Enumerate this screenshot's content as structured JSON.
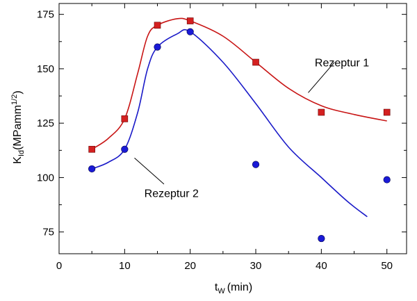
{
  "chart_data": {
    "type": "scatter",
    "xlabel": "t",
    "xlabel_sub": "W",
    "xlabel_unit": "(min)",
    "ylabel": "K",
    "ylabel_sub": "Id",
    "ylabel_unit": "(MPamm",
    "ylabel_sup": "1/2",
    "ylabel_close": ")",
    "xlim": [
      0,
      53
    ],
    "ylim": [
      65,
      180
    ],
    "xticks": [
      0,
      10,
      20,
      30,
      40,
      50
    ],
    "yticks": [
      75,
      100,
      125,
      150,
      175
    ],
    "grid": false,
    "series": [
      {
        "name": "Rezeptur 1",
        "marker": "square",
        "color": "#d42020",
        "line_color": "#c81414",
        "points": [
          {
            "x": 5,
            "y": 113
          },
          {
            "x": 10,
            "y": 127
          },
          {
            "x": 15,
            "y": 170
          },
          {
            "x": 20,
            "y": 172
          },
          {
            "x": 30,
            "y": 153
          },
          {
            "x": 40,
            "y": 130
          },
          {
            "x": 50,
            "y": 130
          }
        ],
        "curve": [
          {
            "x": 5,
            "y": 113
          },
          {
            "x": 7.5,
            "y": 118
          },
          {
            "x": 10,
            "y": 127
          },
          {
            "x": 12,
            "y": 148
          },
          {
            "x": 13.5,
            "y": 165
          },
          {
            "x": 15,
            "y": 170
          },
          {
            "x": 18,
            "y": 173
          },
          {
            "x": 20,
            "y": 172
          },
          {
            "x": 25,
            "y": 165
          },
          {
            "x": 30,
            "y": 153
          },
          {
            "x": 35,
            "y": 141
          },
          {
            "x": 40,
            "y": 133
          },
          {
            "x": 45,
            "y": 129
          },
          {
            "x": 50,
            "y": 126
          }
        ],
        "label_pointer": {
          "x1": 42,
          "y1": 153,
          "x2": 38,
          "y2": 139
        }
      },
      {
        "name": "Rezeptur 2",
        "marker": "circle",
        "color": "#1a1ad6",
        "line_color": "#1a1ac8",
        "points": [
          {
            "x": 5,
            "y": 104
          },
          {
            "x": 10,
            "y": 113
          },
          {
            "x": 15,
            "y": 160
          },
          {
            "x": 20,
            "y": 167
          },
          {
            "x": 30,
            "y": 106
          },
          {
            "x": 40,
            "y": 72
          },
          {
            "x": 50,
            "y": 99
          }
        ],
        "curve": [
          {
            "x": 5,
            "y": 104
          },
          {
            "x": 7.5,
            "y": 107
          },
          {
            "x": 10,
            "y": 113
          },
          {
            "x": 12,
            "y": 130
          },
          {
            "x": 13.5,
            "y": 150
          },
          {
            "x": 15,
            "y": 160
          },
          {
            "x": 18,
            "y": 166
          },
          {
            "x": 20,
            "y": 167
          },
          {
            "x": 25,
            "y": 153
          },
          {
            "x": 30,
            "y": 134
          },
          {
            "x": 35,
            "y": 114
          },
          {
            "x": 40,
            "y": 100
          },
          {
            "x": 44,
            "y": 89
          },
          {
            "x": 47,
            "y": 82
          }
        ],
        "label_pointer": {
          "x1": 16,
          "y1": 97,
          "x2": 11.5,
          "y2": 109
        }
      }
    ],
    "annotations": [
      {
        "series": 0,
        "text": "Rezeptur 1",
        "x": 39,
        "y": 153
      },
      {
        "series": 1,
        "text": "Rezeptur 2",
        "x": 13,
        "y": 93
      }
    ]
  }
}
